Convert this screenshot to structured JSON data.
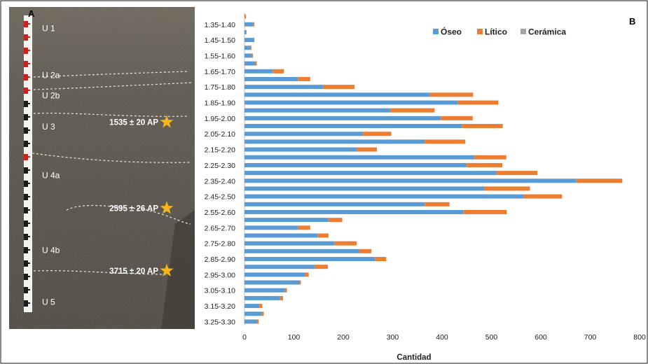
{
  "panel_a": {
    "letter": "A",
    "units": [
      {
        "label": "U 1",
        "depth": 1.4
      },
      {
        "label": "U 2a",
        "depth": 1.7
      },
      {
        "label": "U 2b",
        "depth": 1.83
      },
      {
        "label": "U 3",
        "depth": 2.03
      },
      {
        "label": "U 4a",
        "depth": 2.34
      },
      {
        "label": "U 4b",
        "depth": 2.82
      },
      {
        "label": "U 5",
        "depth": 3.15
      }
    ],
    "dates": [
      {
        "label": "1535 ± 20 AP",
        "depth": 2.0
      },
      {
        "label": "2595 ± 26 AP",
        "depth": 2.55
      },
      {
        "label": "3715 ± 20 AP",
        "depth": 2.95
      }
    ],
    "colors": {
      "soil": "#565148",
      "star": "#f5b51c",
      "boundary": "#e8e8e8",
      "scale_red": "#d11f1f"
    }
  },
  "panel_b": {
    "letter": "B"
  },
  "chart_data": {
    "type": "bar",
    "orientation": "horizontal",
    "stacked": true,
    "categories": [
      "1.30-1.35",
      "1.35-1.40",
      "1.40-1.45",
      "1.45-1.50",
      "1.50-1.55",
      "1.55-1.60",
      "1.60-1.65",
      "1.65-1.70",
      "1.70-1.75",
      "1.75-1.80",
      "1.80-1.85",
      "1.85-1.90",
      "1.90-1.95",
      "1.95-2.00",
      "2.00-2.05",
      "2.05-2.10",
      "2.10-2.15",
      "2.15-2.20",
      "2.20-2.25",
      "2.25-2.30",
      "2.30-2.35",
      "2.35-2.40",
      "2.40-2.45",
      "2.45-2.50",
      "2.50-2.55",
      "2.55-2.60",
      "2.60-2.65",
      "2.65-2.70",
      "2.70-2.75",
      "2.75-2.80",
      "2.80-2.85",
      "2.85-2.90",
      "2.90-2.95",
      "2.95-3.00",
      "3.00-3.05",
      "3.05-3.10",
      "3.10-3.15",
      "3.15-3.20",
      "3.20-3.25",
      "3.25-3.30"
    ],
    "tick_labels": [
      "1.35-1.40",
      "1.45-1.50",
      "1.55-1.60",
      "1.65-1.70",
      "1.75-1.80",
      "1.85-1.90",
      "1.95-2.00",
      "2.05-2.10",
      "2.15-2.20",
      "2.25-2.30",
      "2.35-2.40",
      "2.45-2.50",
      "2.55-2.60",
      "2.65-2.70",
      "2.75-2.80",
      "2.85-2.90",
      "2.95-3.00",
      "3.05-3.10",
      "3.15-3.20",
      "3.25-3.30"
    ],
    "series": [
      {
        "name": "Óseo",
        "color": "#5b9bd5",
        "values": [
          1,
          18,
          4,
          20,
          12,
          15,
          22,
          57,
          108,
          160,
          375,
          432,
          295,
          397,
          440,
          240,
          365,
          228,
          465,
          450,
          510,
          672,
          486,
          565,
          365,
          443,
          170,
          108,
          148,
          182,
          232,
          264,
          142,
          122,
          112,
          82,
          72,
          30,
          35,
          25
        ]
      },
      {
        "name": "Lítico",
        "color": "#ed7d31",
        "values": [
          2,
          2,
          0,
          0,
          2,
          2,
          3,
          23,
          25,
          63,
          88,
          82,
          90,
          65,
          83,
          57,
          82,
          40,
          65,
          72,
          83,
          93,
          92,
          78,
          50,
          88,
          28,
          25,
          22,
          45,
          25,
          23,
          27,
          8,
          2,
          4,
          6,
          6,
          4,
          4
        ]
      },
      {
        "name": "Cerámica",
        "color": "#a5a5a5",
        "values": [
          0,
          0,
          0,
          0,
          0,
          0,
          0,
          0,
          0,
          0,
          0,
          0,
          0,
          0,
          0,
          0,
          0,
          0,
          0,
          0,
          0,
          0,
          0,
          0,
          0,
          0,
          0,
          0,
          0,
          0,
          0,
          0,
          0,
          0,
          0,
          0,
          0,
          0,
          0,
          0
        ]
      }
    ],
    "x_ticks": [
      0,
      100,
      200,
      300,
      400,
      500,
      600,
      700,
      800
    ],
    "xlim": [
      0,
      800
    ],
    "xlabel": "Cantidad",
    "ylabel": "",
    "legend_position": "top-right",
    "grid": false
  }
}
